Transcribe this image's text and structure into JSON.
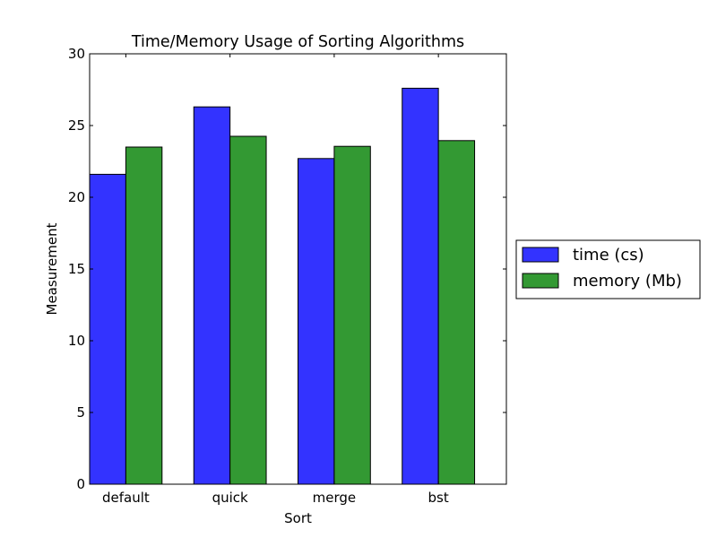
{
  "chart_data": {
    "type": "bar",
    "title": "Time/Memory Usage of Sorting Algorithms",
    "xlabel": "Sort",
    "ylabel": "Measurement",
    "categories": [
      "default",
      "quick",
      "merge",
      "bst"
    ],
    "series": [
      {
        "name": "time (cs)",
        "color": "#3333ff",
        "values": [
          21.6,
          26.3,
          22.7,
          27.6
        ]
      },
      {
        "name": "memory (Mb)",
        "color": "#339933",
        "values": [
          23.5,
          24.25,
          23.55,
          23.95
        ]
      }
    ],
    "ylim": [
      0,
      30
    ],
    "yticks": [
      "0",
      "5",
      "10",
      "15",
      "20",
      "25",
      "30"
    ],
    "grid": false,
    "legend_position": "outside-right"
  }
}
